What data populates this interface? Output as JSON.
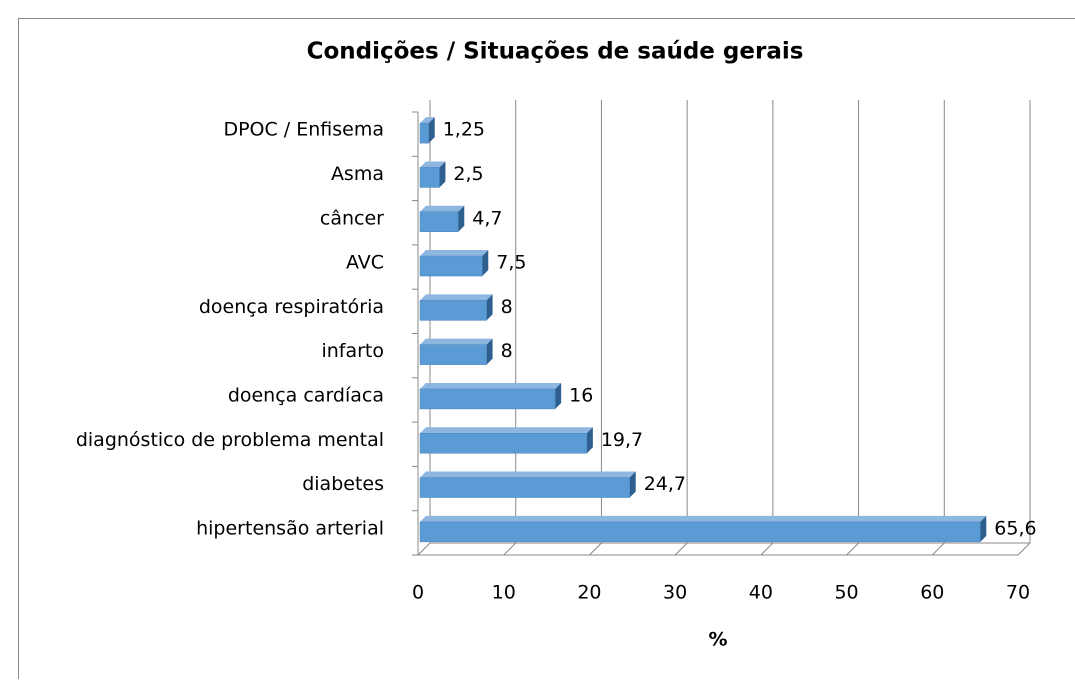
{
  "chart_data": {
    "type": "bar",
    "orientation": "horizontal",
    "title": "Condições / Situações de saúde gerais",
    "x_label": "%",
    "categories": [
      "DPOC / Enfisema",
      "Asma",
      "câncer",
      "AVC",
      "doença respiratória",
      "infarto",
      "doença cardíaca",
      "diagnóstico de problema mental",
      "diabetes",
      "hipertensão arterial"
    ],
    "values": [
      1.25,
      2.5,
      4.7,
      7.5,
      8,
      8,
      16,
      19.7,
      24.7,
      65.6
    ],
    "value_labels": [
      "1,25",
      "2,5",
      "4,7",
      "7,5",
      "8",
      "8",
      "16",
      "19,7",
      "24,7",
      "65,6"
    ],
    "color": "#5b9bd5",
    "xlim": [
      0,
      70
    ],
    "xticks": [
      0,
      10,
      20,
      30,
      40,
      50,
      60,
      70
    ],
    "grid": true
  }
}
